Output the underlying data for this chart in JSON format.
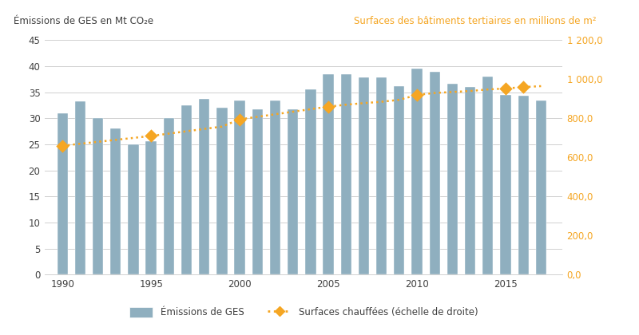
{
  "years": [
    1990,
    1991,
    1992,
    1993,
    1994,
    1995,
    1996,
    1997,
    1998,
    1999,
    2000,
    2001,
    2002,
    2003,
    2004,
    2005,
    2006,
    2007,
    2008,
    2009,
    2010,
    2011,
    2012,
    2013,
    2014,
    2015,
    2016,
    2017
  ],
  "ges_values": [
    31.0,
    33.2,
    30.0,
    28.1,
    25.0,
    25.6,
    30.0,
    32.5,
    33.7,
    32.1,
    33.4,
    31.8,
    33.5,
    31.7,
    35.5,
    38.5,
    38.5,
    37.8,
    37.8,
    36.2,
    39.5,
    39.0,
    36.7,
    36.0,
    38.0,
    34.5,
    34.3,
    33.5
  ],
  "surfaces_years": [
    1990,
    1991,
    1992,
    1993,
    1994,
    1995,
    1996,
    1997,
    1998,
    1999,
    2000,
    2001,
    2002,
    2003,
    2004,
    2005,
    2006,
    2007,
    2008,
    2009,
    2010,
    2011,
    2012,
    2013,
    2014,
    2015,
    2016,
    2017
  ],
  "surfaces_values": [
    660,
    670,
    680,
    690,
    700,
    710,
    722,
    734,
    746,
    758,
    795,
    808,
    821,
    834,
    847,
    860,
    870,
    878,
    885,
    895,
    920,
    930,
    935,
    940,
    948,
    953,
    960,
    965
  ],
  "bar_color": "#8fafbf",
  "line_color": "#f5a623",
  "background_color": "#ffffff",
  "left_ylabel": "Émissions de GES en Mt CO₂e",
  "right_ylabel": "Surfaces des bâtiments tertiaires en millions de m²",
  "ylim_left": [
    0,
    45
  ],
  "ylim_right": [
    0,
    1200
  ],
  "yticks_left": [
    0,
    5,
    10,
    15,
    20,
    25,
    30,
    35,
    40,
    45
  ],
  "yticks_right": [
    0.0,
    200.0,
    400.0,
    600.0,
    800.0,
    1000.0,
    1200.0
  ],
  "yticks_right_labels": [
    "0,0",
    "200,0",
    "400,0",
    "600,0",
    "800,0",
    "1 000,0",
    "1 200,0"
  ],
  "xtick_years": [
    1990,
    1995,
    2000,
    2005,
    2010,
    2015
  ],
  "legend_bar_label": "Émissions de GES",
  "legend_line_label": "Surfaces chauffées (échelle de droite)",
  "grid_color": "#d0d0d0",
  "title_left_color": "#404040",
  "title_right_color": "#f5a623",
  "diamond_years": [
    1990,
    1995,
    2000,
    2005,
    2010,
    2015,
    2016
  ],
  "diamond_values": [
    660,
    710,
    795,
    860,
    920,
    953,
    960
  ]
}
